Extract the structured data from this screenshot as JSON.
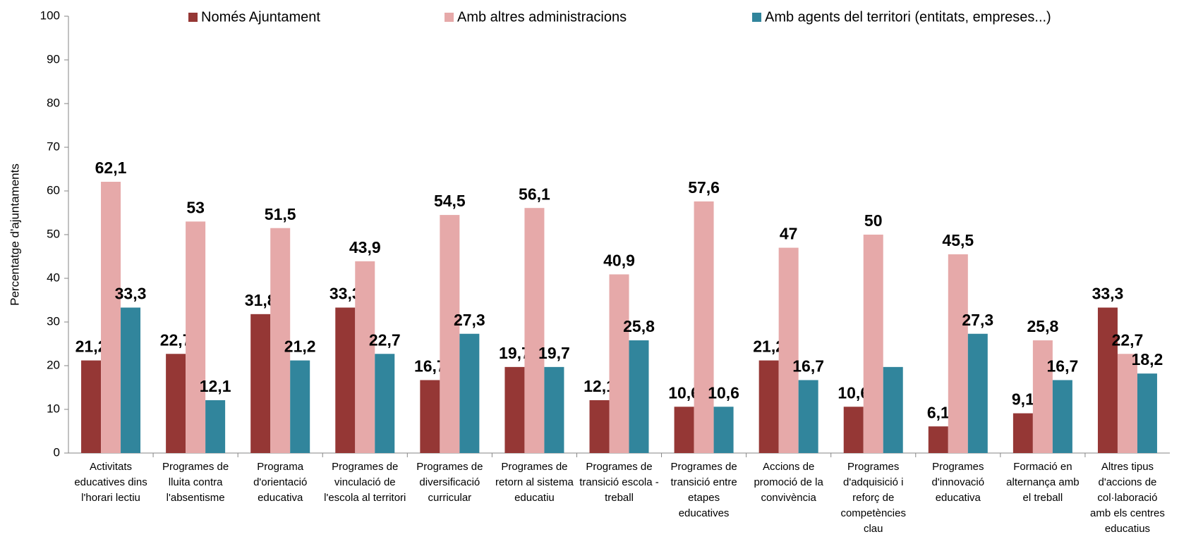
{
  "chart_data": {
    "type": "bar",
    "y_axis_label": "Percentatge d'ajuntaments",
    "categories": [
      "Activitats educatives dins l'horari lectiu",
      "Programes de lluita contra l'absentisme",
      "Programa d'orientació educativa",
      "Programes de vinculació de l'escola al territori",
      "Programes de diversificació curricular",
      "Programes de retorn al sistema educatiu",
      "Programes de transició escola - treball",
      "Programes de transició entre etapes educatives",
      "Accions de promoció de la convivència",
      "Programes d'adquisició i reforç de competències clau",
      "Programes d'innovació educativa",
      "Formació en alternança amb el treball",
      "Altres tipus d'accions de col·laboració amb els centres educatius"
    ],
    "series": [
      {
        "name": "Només Ajuntament",
        "color": "#953735",
        "values": [
          21.2,
          22.7,
          31.8,
          33.3,
          16.7,
          19.7,
          12.1,
          10.6,
          21.2,
          10.6,
          6.1,
          9.1,
          33.3
        ],
        "value_labels": [
          "21,2",
          "22,7",
          "31,8",
          "33,3",
          "16,7",
          "19,7",
          "12,1",
          "10,6",
          "21,2",
          "10,6",
          "6,1",
          "9,1",
          "33,3"
        ]
      },
      {
        "name": "Amb altres administracions",
        "color": "#e6a9a9",
        "values": [
          62.1,
          53,
          51.5,
          43.9,
          54.5,
          56.1,
          40.9,
          57.6,
          47,
          50,
          45.5,
          25.8,
          22.7
        ],
        "value_labels": [
          "62,1",
          "53",
          "51,5",
          "43,9",
          "54,5",
          "56,1",
          "40,9",
          "57,6",
          "47",
          "50",
          "45,5",
          "25,8",
          "22,7"
        ]
      },
      {
        "name": "Amb agents del territori (entitats, empreses...)",
        "color": "#31859c",
        "values": [
          33.3,
          12.1,
          21.2,
          22.7,
          27.3,
          19.7,
          25.8,
          10.6,
          16.7,
          19.7,
          27.3,
          16.7,
          18.2
        ],
        "value_labels": [
          "33,3",
          "12,1",
          "21,2",
          "22,7",
          "27,3",
          "19,7",
          "25,8",
          "10,6",
          "16,7",
          null,
          "27,3",
          "16,7",
          "18,2"
        ]
      }
    ],
    "ylim": [
      0,
      100
    ],
    "yticks": [
      0,
      10,
      20,
      30,
      40,
      50,
      60,
      70,
      80,
      90,
      100
    ],
    "grid": false,
    "legend": "top"
  }
}
